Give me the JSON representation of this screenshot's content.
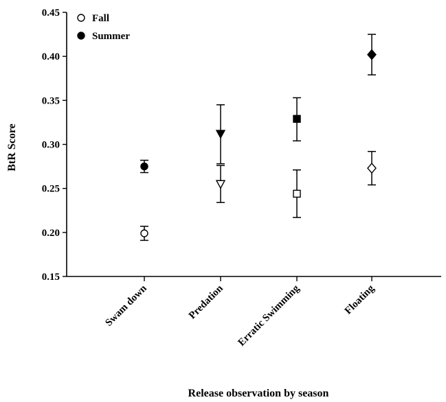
{
  "chart_data": {
    "type": "scatter",
    "title": "",
    "xlabel": "Release observation by season",
    "ylabel": "BtR Score",
    "ylim": [
      0.15,
      0.45
    ],
    "y_ticks": [
      "0.15",
      "0.20",
      "0.25",
      "0.30",
      "0.35",
      "0.40",
      "0.45"
    ],
    "categories": [
      "Swam down",
      "Predation",
      "Erratic Swimming",
      "Floating"
    ],
    "legend": {
      "position": "top-left",
      "entries": [
        "Fall",
        "Summer"
      ]
    },
    "series": [
      {
        "name": "Fall",
        "fill": "#ffffff",
        "markers": [
          "circle",
          "triangle-down",
          "square",
          "diamond"
        ],
        "values": [
          0.199,
          0.255,
          0.244,
          0.273
        ],
        "err_low": [
          0.191,
          0.234,
          0.217,
          0.254
        ],
        "err_high": [
          0.207,
          0.276,
          0.271,
          0.292
        ]
      },
      {
        "name": "Summer",
        "fill": "#000000",
        "markers": [
          "circle",
          "triangle-down",
          "square",
          "diamond"
        ],
        "values": [
          0.275,
          0.312,
          0.329,
          0.402
        ],
        "err_low": [
          0.268,
          0.278,
          0.304,
          0.379
        ],
        "err_high": [
          0.282,
          0.345,
          0.353,
          0.425
        ]
      }
    ]
  }
}
